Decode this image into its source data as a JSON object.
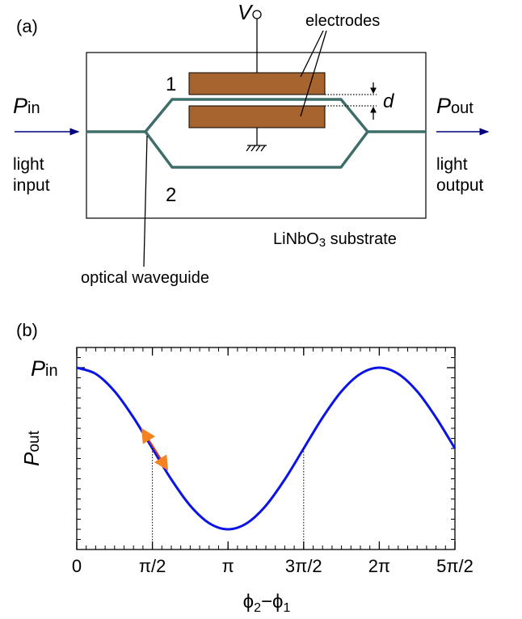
{
  "panel_a": {
    "label": "(a)",
    "voltage": "V",
    "electrodes": "electrodes",
    "arm_1": "1",
    "arm_2": "2",
    "gap": "d",
    "input": {
      "symbol": "P",
      "sub": "in",
      "text": [
        "light",
        "input"
      ]
    },
    "output": {
      "symbol": "P",
      "sub": "out",
      "text": [
        "light",
        "output"
      ]
    },
    "substrate": {
      "main": "LiNbO",
      "sub": "3",
      "rest": " substrate"
    },
    "waveguide": "optical waveguide"
  },
  "chart_data": {
    "type": "line",
    "panel_label": "(b)",
    "x_label": {
      "a": "ϕ",
      "a_sub": "2",
      "b": "−ϕ",
      "b_sub": "1"
    },
    "y_label": {
      "main": "P",
      "sub": "out"
    },
    "x": [
      0,
      0.3927,
      0.7854,
      1.1781,
      1.5708,
      1.9635,
      2.3562,
      2.7489,
      3.1416,
      3.5343,
      3.927,
      4.3197,
      4.7124,
      5.1051,
      5.4978,
      5.8905,
      6.2832,
      6.6759,
      7.0686,
      7.4613,
      7.854
    ],
    "series": [
      {
        "color": "#0a14e6",
        "values": [
          1,
          0.9619,
          0.8536,
          0.6913,
          0.5,
          0.3087,
          0.1464,
          0.0381,
          0,
          0.0381,
          0.1464,
          0.3087,
          0.5,
          0.6913,
          0.8536,
          0.9619,
          1,
          0.9619,
          0.8536,
          0.6913,
          0.5
        ]
      }
    ],
    "xlim": [
      0,
      7.854
    ],
    "ylim": [
      -0.125,
      1.125
    ],
    "xticks": [
      0,
      {
        "value": 1.5708,
        "label": "π/2"
      },
      {
        "value": 3.1416,
        "label": "π"
      },
      {
        "value": 4.7124,
        "label": "3π/2"
      },
      {
        "value": 6.2832,
        "label": "2π"
      },
      {
        "value": 7.854,
        "label": "5π/2"
      }
    ],
    "yticks": [
      {
        "value": 1,
        "label": {
          "main": "P",
          "sub": "in"
        }
      }
    ],
    "guides": [
      1.5708,
      4.7124
    ]
  }
}
